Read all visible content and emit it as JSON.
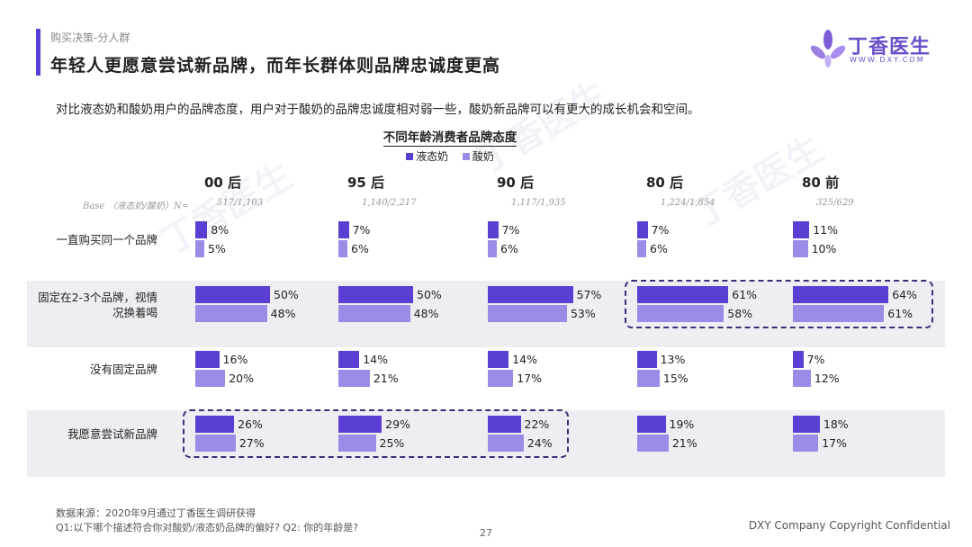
{
  "header": {
    "breadcrumb": "购买决策-分人群",
    "title": "年轻人更愿意尝试新品牌，而年长群体则品牌忠诚度更高",
    "subtitle": "对比液态奶和酸奶用户的品牌态度，用户对于酸奶的品牌忠诚度相对弱一些，酸奶新品牌可以有更大的成长机会和空间。"
  },
  "logo": {
    "name_cn": "丁香医生",
    "name_en": "WWW.DXY.COM",
    "icon": "clove-flower-icon"
  },
  "colors": {
    "accent": "#5b3fd3",
    "liquid": "#5b3fd3",
    "yogurt": "#9a8be6",
    "band": "#eeeef2",
    "highlight": "#3a2e7a"
  },
  "chart_data": {
    "type": "bar",
    "orientation": "horizontal",
    "title": "不同年龄消费者品牌态度",
    "legend": [
      "液态奶",
      "酸奶"
    ],
    "legend_position": "top",
    "base_label": "Base （液态奶/酸奶）N=",
    "groups": [
      {
        "name": "00 后",
        "base": "517/1,103"
      },
      {
        "name": "95 后",
        "base": "1,140/2,217"
      },
      {
        "name": "90 后",
        "base": "1,117/1,935"
      },
      {
        "name": "80 后",
        "base": "1,224/1,854"
      },
      {
        "name": "80 前",
        "base": "325/629"
      }
    ],
    "categories": [
      "一直购买同一个品牌",
      "固定在2-3个品牌，视情况换着喝",
      "没有固定品牌",
      "我愿意尝试新品牌"
    ],
    "series": [
      {
        "name": "液态奶",
        "values": [
          [
            8,
            7,
            7,
            7,
            11
          ],
          [
            50,
            50,
            57,
            61,
            64
          ],
          [
            16,
            14,
            14,
            13,
            7
          ],
          [
            26,
            29,
            22,
            19,
            18
          ]
        ]
      },
      {
        "name": "酸奶",
        "values": [
          [
            5,
            6,
            6,
            6,
            10
          ],
          [
            48,
            48,
            53,
            58,
            61
          ],
          [
            20,
            21,
            17,
            15,
            12
          ],
          [
            27,
            25,
            24,
            21,
            17
          ]
        ]
      }
    ],
    "unit": "%",
    "highlights": [
      {
        "category_index": 1,
        "groups": [
          3,
          4
        ]
      },
      {
        "category_index": 3,
        "groups": [
          0,
          1,
          2
        ]
      }
    ]
  },
  "row_labels": [
    [
      "一直购买同一个品牌"
    ],
    [
      "固定在2-3个品牌，视情",
      "况换着喝"
    ],
    [
      "没有固定品牌"
    ],
    [
      "我愿意尝试新品牌"
    ]
  ],
  "footer": {
    "source": "数据来源：2020年9月通过丁香医生调研获得",
    "questions": "Q1:以下哪个描述符合你对酸奶/液态奶品牌的偏好? Q2: 你的年龄是?",
    "page": "27",
    "copyright": "DXY Company Copyright Confidential"
  }
}
